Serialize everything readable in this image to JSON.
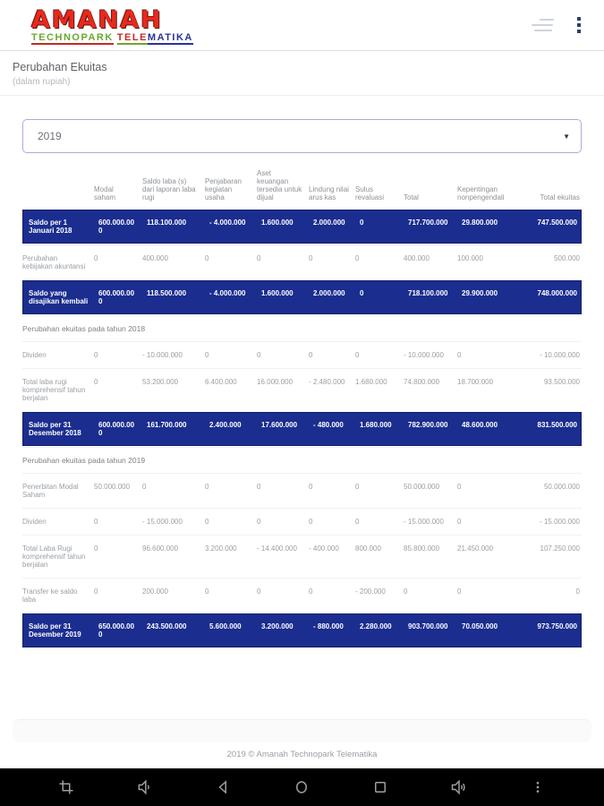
{
  "app_bar": {
    "logo": {
      "title": "AMANAH",
      "subtitle_green": "TECHNOPARK",
      "subtitle_red": "TELE",
      "subtitle_blue": "MATIKA"
    },
    "menu_icon": "hamburger-lines",
    "overflow_icon": "vertical-dots"
  },
  "page": {
    "title": "Perubahan Ekuitas",
    "subtitle": "(dalam rupiah)"
  },
  "year_select": {
    "value": "2019",
    "caret": "▼"
  },
  "table": {
    "columns": [
      "",
      "Modal saham",
      "Saldo laba (s) dari laporan laba rugi",
      "Penjabaran kegiatan usaha",
      "Aset keuangan tersedia untuk dijual",
      "Lindung nilai arus kas",
      "Sulus revaluasi",
      "Total",
      "Kepentingan nonpengendali",
      "Total ekuitas"
    ],
    "rows": [
      {
        "type": "highlight",
        "label": "Saldo per 1 Januari 2018",
        "values": [
          "600.000.000",
          "118.100.000",
          "- 4.000.000",
          "1.600.000",
          "2.000.000",
          "0",
          "717.700.000",
          "29.800.000",
          "747.500.000"
        ]
      },
      {
        "type": "normal",
        "label": "Perubahan kebijakan akuntansi",
        "values": [
          "0",
          "400.000",
          "0",
          "0",
          "0",
          "0",
          "400.000",
          "100.000",
          "500.000"
        ]
      },
      {
        "type": "highlight",
        "label": "Saldo yang disajikan kembali",
        "values": [
          "600.000.000",
          "118.500.000",
          "- 4.000.000",
          "1.600.000",
          "2.000.000",
          "0",
          "718.100.000",
          "29.900.000",
          "748.000.000"
        ]
      },
      {
        "type": "section",
        "label": "Perubahan ekuitas pada tahun 2018",
        "values": []
      },
      {
        "type": "normal",
        "label": "Dividen",
        "values": [
          "0",
          "- 10.000.000",
          "0",
          "0",
          "0",
          "0",
          "- 10.000.000",
          "0",
          "- 10.000.000"
        ]
      },
      {
        "type": "normal",
        "label": "Total laba rugi komprehensif tahun berjalan",
        "values": [
          "0",
          "53.200.000",
          "6.400.000",
          "16.000.000",
          "- 2.480.000",
          "1.680.000",
          "74.800.000",
          "18.700.000",
          "93.500.000"
        ]
      },
      {
        "type": "highlight",
        "label": "Saldo per 31 Desember 2018",
        "values": [
          "600.000.000",
          "161.700.000",
          "2.400.000",
          "17.600.000",
          "- 480.000",
          "1.680.000",
          "782.900.000",
          "48.600.000",
          "831.500.000"
        ]
      },
      {
        "type": "section",
        "label": "Perubahan ekuitas pada tahun 2019",
        "values": []
      },
      {
        "type": "normal",
        "label": "Penerbitan Modal Saham",
        "values": [
          "50.000.000",
          "0",
          "0",
          "0",
          "0",
          "0",
          "50.000.000",
          "0",
          "50.000.000"
        ]
      },
      {
        "type": "normal",
        "label": "Dividen",
        "values": [
          "0",
          "- 15.000.000",
          "0",
          "0",
          "0",
          "0",
          "- 15.000.000",
          "0",
          "- 15.000.000"
        ]
      },
      {
        "type": "normal",
        "label": "Total Laba Rugi komprehensif tahun berjalan",
        "values": [
          "0",
          "96.600.000",
          "3.200.000",
          "- 14.400.000",
          "- 400.000",
          "800.000",
          "85.800.000",
          "21.450.000",
          "107.250.000"
        ]
      },
      {
        "type": "normal",
        "label": "Transfer ke saldo laba",
        "values": [
          "0",
          "200.000",
          "0",
          "0",
          "0",
          "- 200.000",
          "0",
          "0",
          "0"
        ]
      },
      {
        "type": "highlight",
        "label": "Saldo per 31 Desember 2019",
        "values": [
          "650.000.000",
          "243.500.000",
          "5.600.000",
          "3.200.000",
          "- 880.000",
          "2.280.000",
          "903.700.000",
          "70.050.000",
          "973.750.000"
        ]
      }
    ]
  },
  "footer": {
    "copyright": "2019 © Amanah Technopark Telematika"
  },
  "nav_bar": {
    "icons": [
      "screenshot-crop",
      "volume-down",
      "back",
      "home",
      "recents",
      "volume-up",
      "overflow-dots"
    ]
  },
  "colors": {
    "highlight_row_bg": "#1b2d8f",
    "highlight_row_border": "#141f66",
    "logo_red": "#e8291c",
    "logo_green": "#6aa82e",
    "logo_blue": "#27339c",
    "select_border": "#a8aede",
    "nav_bar_bg": "#000000",
    "nav_icon": "#9e9e9e",
    "text_gray": "#9aa0a6"
  }
}
